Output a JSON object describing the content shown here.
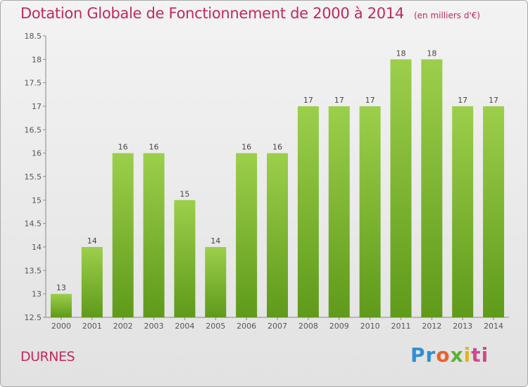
{
  "header": {
    "title": "Dotation Globale de Fonctionnement de 2000 à 2014",
    "subtitle": "(en milliers d'€)"
  },
  "footer": {
    "place": "DURNES",
    "logo": [
      "Pr",
      "o",
      "x",
      "i",
      "ti"
    ]
  },
  "colors": {
    "accent": "#c0295c",
    "bar_top": "#9ccf4b",
    "bar_bottom": "#5f9a1a"
  },
  "chart_data": {
    "type": "bar",
    "categories": [
      "2000",
      "2001",
      "2002",
      "2003",
      "2004",
      "2005",
      "2006",
      "2007",
      "2008",
      "2009",
      "2010",
      "2011",
      "2012",
      "2013",
      "2014"
    ],
    "values": [
      13,
      14,
      16,
      16,
      15,
      14,
      16,
      16,
      17,
      17,
      17,
      18,
      18,
      17,
      17
    ],
    "title": "Dotation Globale de Fonctionnement de 2000 à 2014",
    "subtitle": "(en milliers d'€)",
    "xlabel": "",
    "ylabel": "",
    "ylim": [
      12.5,
      18.5
    ],
    "yticks": [
      "12.5",
      "13",
      "13.5",
      "14",
      "14.5",
      "15",
      "15.5",
      "16",
      "16.5",
      "17",
      "17.5",
      "18",
      "18.5"
    ],
    "grid": false,
    "legend": "none"
  }
}
